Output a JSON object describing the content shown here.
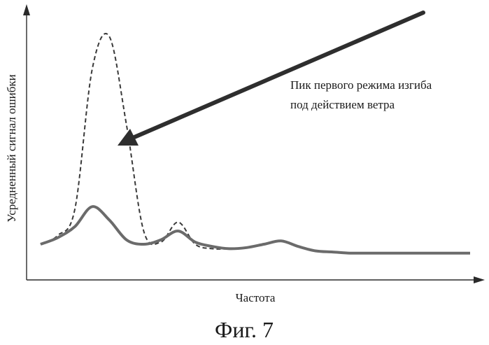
{
  "chart_data": {
    "type": "line",
    "xlabel": "Частота",
    "ylabel": "Усредненный сигнал ошибки",
    "caption": "Фиг. 7",
    "x": [
      0,
      4,
      8,
      12,
      16,
      20,
      24,
      28,
      32,
      36,
      40,
      44,
      48,
      52,
      56,
      60,
      64,
      68,
      72,
      76,
      80,
      84,
      88,
      92,
      96,
      100
    ],
    "series": [
      {
        "style": "solid",
        "color": "#6b6b6b",
        "values": [
          0.06,
          0.09,
          0.14,
          0.23,
          0.17,
          0.08,
          0.06,
          0.08,
          0.12,
          0.07,
          0.05,
          0.04,
          0.045,
          0.06,
          0.075,
          0.05,
          0.03,
          0.025,
          0.02,
          0.02,
          0.02,
          0.02,
          0.02,
          0.02,
          0.02,
          0.02
        ]
      },
      {
        "style": "dashed",
        "color": "#3a3a3a",
        "values": [
          0.06,
          0.1,
          0.22,
          0.85,
          1.0,
          0.6,
          0.12,
          0.07,
          0.16,
          0.06,
          0.04,
          0.04,
          0.045,
          0.06,
          0.075,
          0.05,
          0.03,
          0.025,
          0.02,
          0.02,
          0.02,
          0.02,
          0.02,
          0.02,
          0.02,
          0.02
        ]
      }
    ],
    "annotations": [
      {
        "text_lines": [
          "Пик первого режима изгиба",
          "под действием ветра"
        ],
        "points_to": {
          "x": 14,
          "y": 0.5
        }
      }
    ],
    "grid": false,
    "legend": false
  }
}
